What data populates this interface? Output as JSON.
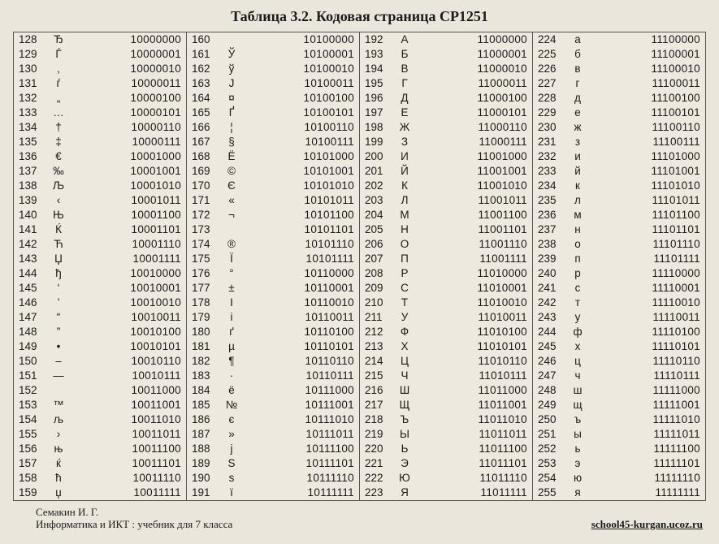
{
  "title": "Таблица 3.2. Кодовая страница CP1251",
  "footer_left_line1": "Семакин И. Г.",
  "footer_left_line2": "Информатика и ИКТ : учебник для 7 класса",
  "footer_right": "school45-kurgan.ucoz.ru",
  "columns": [
    [
      {
        "dec": "128",
        "glyph": "Ђ",
        "bin": "10000000"
      },
      {
        "dec": "129",
        "glyph": "Ѓ",
        "bin": "10000001"
      },
      {
        "dec": "130",
        "glyph": "‚",
        "bin": "10000010"
      },
      {
        "dec": "131",
        "glyph": "ѓ",
        "bin": "10000011"
      },
      {
        "dec": "132",
        "glyph": "„",
        "bin": "10000100"
      },
      {
        "dec": "133",
        "glyph": "…",
        "bin": "10000101"
      },
      {
        "dec": "134",
        "glyph": "†",
        "bin": "10000110"
      },
      {
        "dec": "135",
        "glyph": "‡",
        "bin": "10000111"
      },
      {
        "dec": "136",
        "glyph": "€",
        "bin": "10001000"
      },
      {
        "dec": "137",
        "glyph": "‰",
        "bin": "10001001"
      },
      {
        "dec": "138",
        "glyph": "Љ",
        "bin": "10001010"
      },
      {
        "dec": "139",
        "glyph": "‹",
        "bin": "10001011"
      },
      {
        "dec": "140",
        "glyph": "Њ",
        "bin": "10001100"
      },
      {
        "dec": "141",
        "glyph": "Ќ",
        "bin": "10001101"
      },
      {
        "dec": "142",
        "glyph": "Ћ",
        "bin": "10001110"
      },
      {
        "dec": "143",
        "glyph": "Џ",
        "bin": "10001111"
      },
      {
        "dec": "144",
        "glyph": "ђ",
        "bin": "10010000"
      },
      {
        "dec": "145",
        "glyph": "‘",
        "bin": "10010001"
      },
      {
        "dec": "146",
        "glyph": "’",
        "bin": "10010010"
      },
      {
        "dec": "147",
        "glyph": "“",
        "bin": "10010011"
      },
      {
        "dec": "148",
        "glyph": "”",
        "bin": "10010100"
      },
      {
        "dec": "149",
        "glyph": "•",
        "bin": "10010101"
      },
      {
        "dec": "150",
        "glyph": "–",
        "bin": "10010110"
      },
      {
        "dec": "151",
        "glyph": "—",
        "bin": "10010111"
      },
      {
        "dec": "152",
        "glyph": "",
        "bin": "10011000"
      },
      {
        "dec": "153",
        "glyph": "™",
        "bin": "10011001"
      },
      {
        "dec": "154",
        "glyph": "љ",
        "bin": "10011010"
      },
      {
        "dec": "155",
        "glyph": "›",
        "bin": "10011011"
      },
      {
        "dec": "156",
        "glyph": "њ",
        "bin": "10011100"
      },
      {
        "dec": "157",
        "glyph": "ќ",
        "bin": "10011101"
      },
      {
        "dec": "158",
        "glyph": "ћ",
        "bin": "10011110"
      },
      {
        "dec": "159",
        "glyph": "џ",
        "bin": "10011111"
      }
    ],
    [
      {
        "dec": "160",
        "glyph": "",
        "bin": "10100000"
      },
      {
        "dec": "161",
        "glyph": "Ў",
        "bin": "10100001"
      },
      {
        "dec": "162",
        "glyph": "ў",
        "bin": "10100010"
      },
      {
        "dec": "163",
        "glyph": "Ј",
        "bin": "10100011"
      },
      {
        "dec": "164",
        "glyph": "¤",
        "bin": "10100100"
      },
      {
        "dec": "165",
        "glyph": "Ґ",
        "bin": "10100101"
      },
      {
        "dec": "166",
        "glyph": "¦",
        "bin": "10100110"
      },
      {
        "dec": "167",
        "glyph": "§",
        "bin": "10100111"
      },
      {
        "dec": "168",
        "glyph": "Ё",
        "bin": "10101000"
      },
      {
        "dec": "169",
        "glyph": "©",
        "bin": "10101001"
      },
      {
        "dec": "170",
        "glyph": "Є",
        "bin": "10101010"
      },
      {
        "dec": "171",
        "glyph": "«",
        "bin": "10101011"
      },
      {
        "dec": "172",
        "glyph": "¬",
        "bin": "10101100"
      },
      {
        "dec": "173",
        "glyph": "",
        "bin": "10101101"
      },
      {
        "dec": "174",
        "glyph": "®",
        "bin": "10101110"
      },
      {
        "dec": "175",
        "glyph": "Ї",
        "bin": "10101111"
      },
      {
        "dec": "176",
        "glyph": "°",
        "bin": "10110000"
      },
      {
        "dec": "177",
        "glyph": "±",
        "bin": "10110001"
      },
      {
        "dec": "178",
        "glyph": "І",
        "bin": "10110010"
      },
      {
        "dec": "179",
        "glyph": "і",
        "bin": "10110011"
      },
      {
        "dec": "180",
        "glyph": "ґ",
        "bin": "10110100"
      },
      {
        "dec": "181",
        "glyph": "µ",
        "bin": "10110101"
      },
      {
        "dec": "182",
        "glyph": "¶",
        "bin": "10110110"
      },
      {
        "dec": "183",
        "glyph": "·",
        "bin": "10110111"
      },
      {
        "dec": "184",
        "glyph": "ё",
        "bin": "10111000"
      },
      {
        "dec": "185",
        "glyph": "№",
        "bin": "10111001"
      },
      {
        "dec": "186",
        "glyph": "є",
        "bin": "10111010"
      },
      {
        "dec": "187",
        "glyph": "»",
        "bin": "10111011"
      },
      {
        "dec": "188",
        "glyph": "ј",
        "bin": "10111100"
      },
      {
        "dec": "189",
        "glyph": "Ѕ",
        "bin": "10111101"
      },
      {
        "dec": "190",
        "glyph": "ѕ",
        "bin": "10111110"
      },
      {
        "dec": "191",
        "glyph": "ї",
        "bin": "10111111"
      }
    ],
    [
      {
        "dec": "192",
        "glyph": "А",
        "bin": "11000000"
      },
      {
        "dec": "193",
        "glyph": "Б",
        "bin": "11000001"
      },
      {
        "dec": "194",
        "glyph": "В",
        "bin": "11000010"
      },
      {
        "dec": "195",
        "glyph": "Г",
        "bin": "11000011"
      },
      {
        "dec": "196",
        "glyph": "Д",
        "bin": "11000100"
      },
      {
        "dec": "197",
        "glyph": "Е",
        "bin": "11000101"
      },
      {
        "dec": "198",
        "glyph": "Ж",
        "bin": "11000110"
      },
      {
        "dec": "199",
        "glyph": "З",
        "bin": "11000111"
      },
      {
        "dec": "200",
        "glyph": "И",
        "bin": "11001000"
      },
      {
        "dec": "201",
        "glyph": "Й",
        "bin": "11001001"
      },
      {
        "dec": "202",
        "glyph": "К",
        "bin": "11001010"
      },
      {
        "dec": "203",
        "glyph": "Л",
        "bin": "11001011"
      },
      {
        "dec": "204",
        "glyph": "М",
        "bin": "11001100"
      },
      {
        "dec": "205",
        "glyph": "Н",
        "bin": "11001101"
      },
      {
        "dec": "206",
        "glyph": "О",
        "bin": "11001110"
      },
      {
        "dec": "207",
        "glyph": "П",
        "bin": "11001111"
      },
      {
        "dec": "208",
        "glyph": "Р",
        "bin": "11010000"
      },
      {
        "dec": "209",
        "glyph": "С",
        "bin": "11010001"
      },
      {
        "dec": "210",
        "glyph": "Т",
        "bin": "11010010"
      },
      {
        "dec": "211",
        "glyph": "У",
        "bin": "11010011"
      },
      {
        "dec": "212",
        "glyph": "Ф",
        "bin": "11010100"
      },
      {
        "dec": "213",
        "glyph": "Х",
        "bin": "11010101"
      },
      {
        "dec": "214",
        "glyph": "Ц",
        "bin": "11010110"
      },
      {
        "dec": "215",
        "glyph": "Ч",
        "bin": "11010111"
      },
      {
        "dec": "216",
        "glyph": "Ш",
        "bin": "11011000"
      },
      {
        "dec": "217",
        "glyph": "Щ",
        "bin": "11011001"
      },
      {
        "dec": "218",
        "glyph": "Ъ",
        "bin": "11011010"
      },
      {
        "dec": "219",
        "glyph": "Ы",
        "bin": "11011011"
      },
      {
        "dec": "220",
        "glyph": "Ь",
        "bin": "11011100"
      },
      {
        "dec": "221",
        "glyph": "Э",
        "bin": "11011101"
      },
      {
        "dec": "222",
        "glyph": "Ю",
        "bin": "11011110"
      },
      {
        "dec": "223",
        "glyph": "Я",
        "bin": "11011111"
      }
    ],
    [
      {
        "dec": "224",
        "glyph": "а",
        "bin": "11100000"
      },
      {
        "dec": "225",
        "glyph": "б",
        "bin": "11100001"
      },
      {
        "dec": "226",
        "glyph": "в",
        "bin": "11100010"
      },
      {
        "dec": "227",
        "glyph": "г",
        "bin": "11100011"
      },
      {
        "dec": "228",
        "glyph": "д",
        "bin": "11100100"
      },
      {
        "dec": "229",
        "glyph": "е",
        "bin": "11100101"
      },
      {
        "dec": "230",
        "glyph": "ж",
        "bin": "11100110"
      },
      {
        "dec": "231",
        "glyph": "з",
        "bin": "11100111"
      },
      {
        "dec": "232",
        "glyph": "и",
        "bin": "11101000"
      },
      {
        "dec": "233",
        "glyph": "й",
        "bin": "11101001"
      },
      {
        "dec": "234",
        "glyph": "к",
        "bin": "11101010"
      },
      {
        "dec": "235",
        "glyph": "л",
        "bin": "11101011"
      },
      {
        "dec": "236",
        "glyph": "м",
        "bin": "11101100"
      },
      {
        "dec": "237",
        "glyph": "н",
        "bin": "11101101"
      },
      {
        "dec": "238",
        "glyph": "о",
        "bin": "11101110"
      },
      {
        "dec": "239",
        "glyph": "п",
        "bin": "11101111"
      },
      {
        "dec": "240",
        "glyph": "р",
        "bin": "11110000"
      },
      {
        "dec": "241",
        "glyph": "с",
        "bin": "11110001"
      },
      {
        "dec": "242",
        "glyph": "т",
        "bin": "11110010"
      },
      {
        "dec": "243",
        "glyph": "у",
        "bin": "11110011"
      },
      {
        "dec": "244",
        "glyph": "ф",
        "bin": "11110100"
      },
      {
        "dec": "245",
        "glyph": "х",
        "bin": "11110101"
      },
      {
        "dec": "246",
        "glyph": "ц",
        "bin": "11110110"
      },
      {
        "dec": "247",
        "glyph": "ч",
        "bin": "11110111"
      },
      {
        "dec": "248",
        "glyph": "ш",
        "bin": "11111000"
      },
      {
        "dec": "249",
        "glyph": "щ",
        "bin": "11111001"
      },
      {
        "dec": "250",
        "glyph": "ъ",
        "bin": "11111010"
      },
      {
        "dec": "251",
        "glyph": "ы",
        "bin": "11111011"
      },
      {
        "dec": "252",
        "glyph": "ь",
        "bin": "11111100"
      },
      {
        "dec": "253",
        "glyph": "э",
        "bin": "11111101"
      },
      {
        "dec": "254",
        "glyph": "ю",
        "bin": "11111110"
      },
      {
        "dec": "255",
        "glyph": "я",
        "bin": "11111111"
      }
    ]
  ]
}
